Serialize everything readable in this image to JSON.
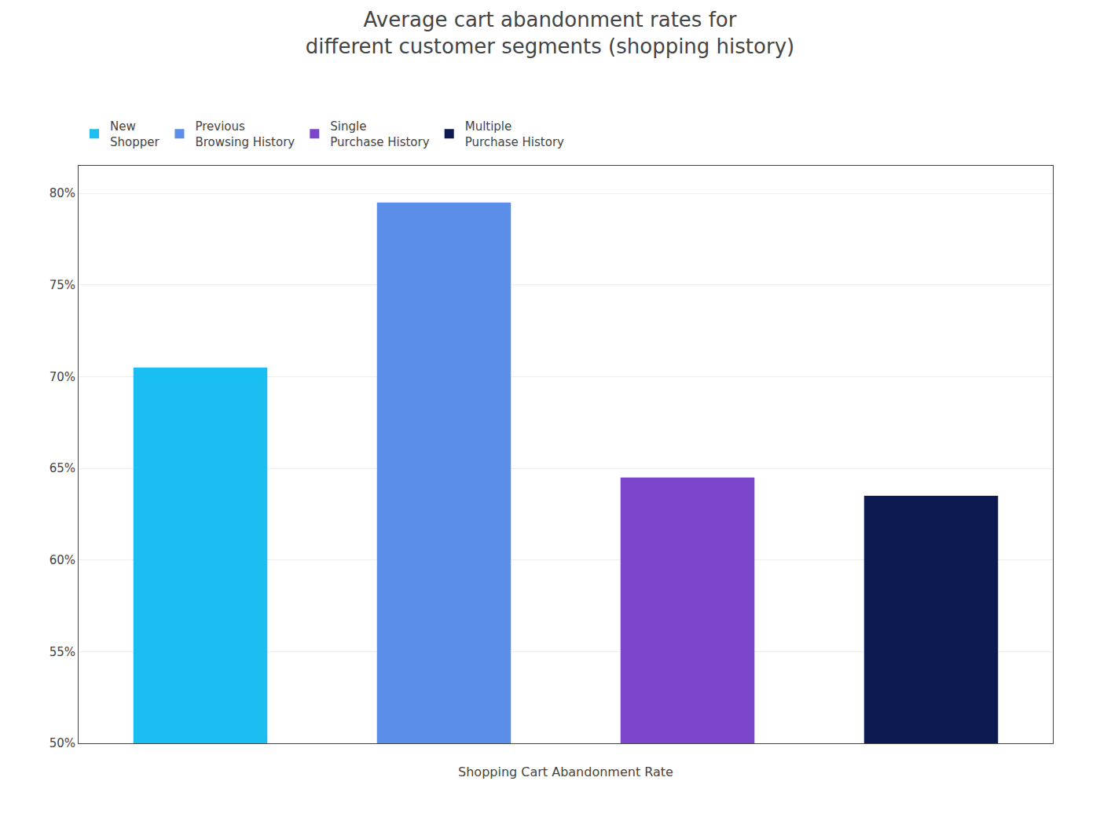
{
  "chart_data": {
    "type": "bar",
    "title": "Average cart abandonment rates for\ndifferent customer segments (shopping history)",
    "xlabel": "Shopping Cart Abandonment Rate",
    "categories": [
      "New\nShopper",
      "Previous\nBrowsing History",
      "Single\nPurchase History",
      "Multiple\nPurchase History"
    ],
    "values": [
      0.705,
      0.795,
      0.645,
      0.635
    ],
    "colors": [
      "#1BBEF0",
      "#5B8EE8",
      "#7B45CC",
      "#0D1A52"
    ],
    "ylim": [
      0.5,
      0.815
    ],
    "yticks": [
      {
        "value": 0.5,
        "label": "50%"
      },
      {
        "value": 0.55,
        "label": "55%"
      },
      {
        "value": 0.6,
        "label": "60%"
      },
      {
        "value": 0.65,
        "label": "65%"
      },
      {
        "value": 0.7,
        "label": "70%"
      },
      {
        "value": 0.75,
        "label": "75%"
      },
      {
        "value": 0.8,
        "label": "80%"
      }
    ],
    "grid": true,
    "legend": "upper left",
    "tick_labels": "y"
  }
}
